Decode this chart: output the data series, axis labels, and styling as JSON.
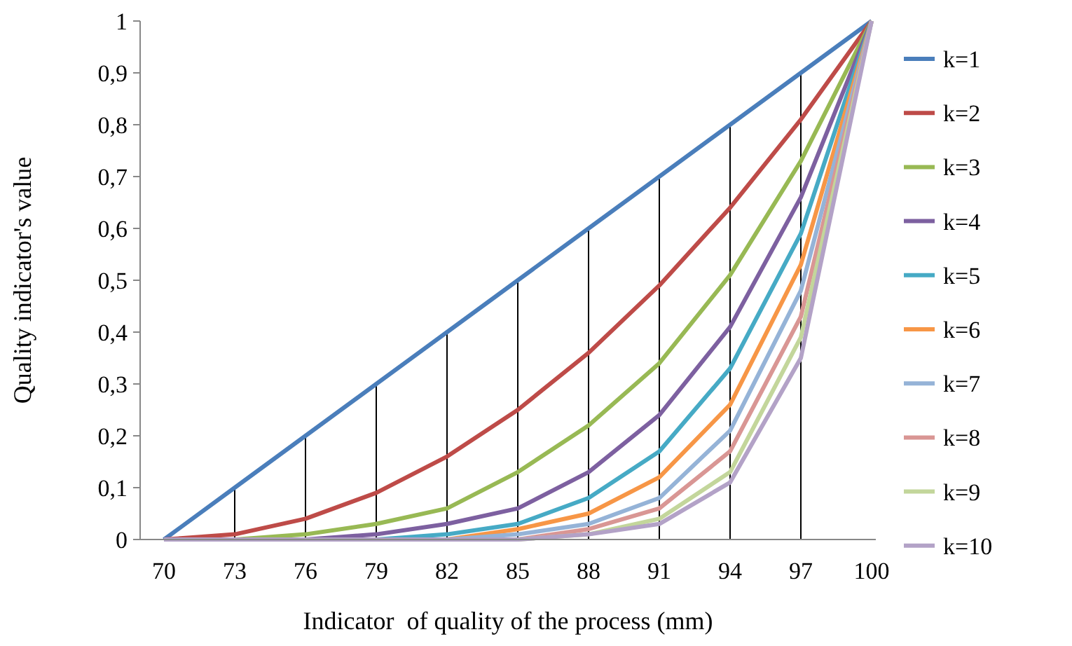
{
  "chart_data": {
    "type": "line",
    "xlabel": "Indicator  of quality of the process (mm)",
    "ylabel": "Quality indicator's value",
    "categories": [
      "70",
      "73",
      "76",
      "79",
      "82",
      "85",
      "88",
      "91",
      "94",
      "97",
      "100"
    ],
    "ylim": [
      0,
      1
    ],
    "yticks": [
      0,
      {
        "value": 0.1,
        "label": "0,1"
      },
      {
        "value": 0.2,
        "label": "0,2"
      },
      {
        "value": 0.3,
        "label": "0,3"
      },
      {
        "value": 0.4,
        "label": "0,4"
      },
      {
        "value": 0.5,
        "label": "0,5"
      },
      {
        "value": 0.6,
        "label": "0,6"
      },
      {
        "value": 0.7,
        "label": "0,7"
      },
      {
        "value": 0.8,
        "label": "0,8"
      },
      {
        "value": 0.9,
        "label": "0,9"
      },
      1
    ],
    "grid": false,
    "legend": "right",
    "marker": "none",
    "line_style": "solid",
    "series": [
      {
        "type": "bar",
        "color": "#000000",
        "values": [
          null,
          0.1,
          0.2,
          0.3,
          0.4,
          0.5,
          0.6,
          0.7,
          0.8,
          0.9,
          null
        ]
      },
      {
        "name": "k=1",
        "color": "#4a7ebb",
        "values": [
          0,
          0.1,
          0.2,
          0.3,
          0.4,
          0.5,
          0.6,
          0.7,
          0.8,
          0.9,
          1
        ]
      },
      {
        "name": "k=2",
        "color": "#be4b48",
        "values": [
          0,
          0.01,
          0.04,
          0.09,
          0.16,
          0.25,
          0.36,
          0.49,
          0.64,
          0.81,
          1
        ]
      },
      {
        "name": "k=3",
        "color": "#98b954",
        "values": [
          0,
          0,
          0.01,
          0.03,
          0.06,
          0.13,
          0.22,
          0.34,
          0.51,
          0.73,
          1
        ]
      },
      {
        "name": "k=4",
        "color": "#7d60a0",
        "values": [
          0,
          0,
          0,
          0.01,
          0.03,
          0.06,
          0.13,
          0.24,
          0.41,
          0.66,
          1
        ]
      },
      {
        "name": "k=5",
        "color": "#46aac5",
        "values": [
          0,
          0,
          0,
          0,
          0.01,
          0.03,
          0.08,
          0.17,
          0.33,
          0.59,
          1
        ]
      },
      {
        "name": "k=6",
        "color": "#f79646",
        "values": [
          0,
          0,
          0,
          0,
          0,
          0.02,
          0.05,
          0.12,
          0.26,
          0.53,
          1
        ]
      },
      {
        "name": "k=7",
        "color": "#95b3d7",
        "values": [
          0,
          0,
          0,
          0,
          0,
          0.01,
          0.03,
          0.08,
          0.21,
          0.48,
          1
        ]
      },
      {
        "name": "k=8",
        "color": "#d99694",
        "values": [
          0,
          0,
          0,
          0,
          0,
          0,
          0.02,
          0.06,
          0.17,
          0.43,
          1
        ]
      },
      {
        "name": "k=9",
        "color": "#c3d69b",
        "values": [
          0,
          0,
          0,
          0,
          0,
          0,
          0.01,
          0.04,
          0.13,
          0.39,
          1
        ]
      },
      {
        "name": "k=10",
        "color": "#b3a2c7",
        "values": [
          0,
          0,
          0,
          0,
          0,
          0,
          0.01,
          0.03,
          0.11,
          0.35,
          1
        ]
      }
    ]
  }
}
